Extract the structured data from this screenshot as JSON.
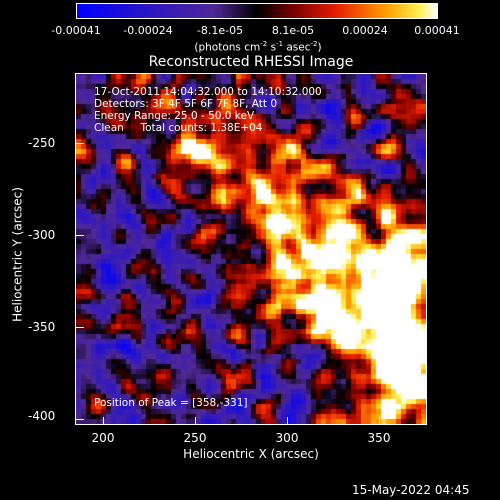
{
  "colorbar": {
    "ticks": [
      "-0.00041",
      "-0.00024",
      "-8.1e-05",
      "8.1e-05",
      "0.00024",
      "0.00041"
    ],
    "units_main": "(photons cm",
    "units_exp1": "-2",
    "units_mid": " s",
    "units_exp2": "-1",
    "units_end": " asec",
    "units_exp3": "-2",
    "units_close": ")"
  },
  "plot": {
    "title": "Reconstructed RHESSI Image",
    "annotations": [
      "17-Oct-2011 14:04:32.000 to 14:10:32.000",
      "Detectors: 3F 4F 5F 6F 7F 8F, Att 0",
      "Energy Range: 25.0 - 50.0 keV",
      "Clean     Total counts: 1.38E+04"
    ],
    "peak_label": "Position of Peak = [358,-331]",
    "footer_date": "15-May-2022 04:45"
  },
  "chart_data": {
    "type": "heatmap",
    "title": "Reconstructed RHESSI Image",
    "xlabel": "Heliocentric X (arcsec)",
    "ylabel": "Heliocentric Y (arcsec)",
    "xlim": [
      185,
      375
    ],
    "ylim": [
      -405,
      -215
    ],
    "x_ticks": [
      "200",
      "250",
      "300",
      "350"
    ],
    "y_ticks": [
      "-250",
      "-300",
      "-350",
      "-400"
    ],
    "colorbar_range": [
      -0.00041,
      0.00041
    ],
    "peak_position": [
      358,
      -331
    ],
    "colors": {
      "low": "#0000ff",
      "mid": "#000000",
      "high": "#ffffff",
      "frame": "#ffffff"
    }
  }
}
